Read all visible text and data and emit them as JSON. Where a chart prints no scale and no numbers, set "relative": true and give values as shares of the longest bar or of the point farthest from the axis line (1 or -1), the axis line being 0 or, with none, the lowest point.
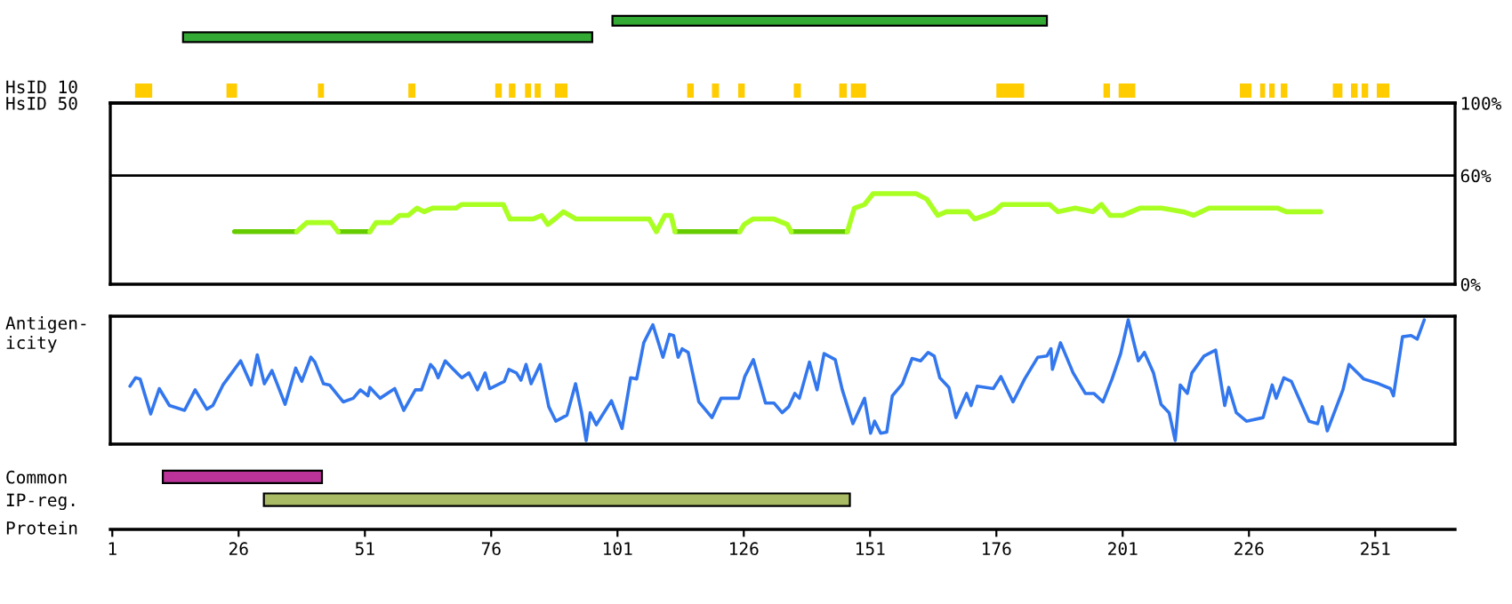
{
  "chart_data": [
    {
      "type": "bar",
      "orientation": "horizontal",
      "categories": [
        null,
        null,
        null,
        null,
        "HsID 10",
        "HsID 50"
      ],
      "values": [
        86,
        81,
        null,
        null,
        null,
        null
      ],
      "base": [
        100,
        15,
        null,
        null,
        null,
        null
      ],
      "colors": [
        "#33aa33",
        "#33aa33",
        null,
        null,
        null,
        null
      ],
      "xlim": [
        0.6,
        266.8
      ],
      "tick_labels": "y",
      "bands": [
        {
          "axis": "x",
          "from": 5.5,
          "to": 8.9,
          "color": "#ffcc00"
        },
        {
          "axis": "x",
          "from": 23.6,
          "to": 25.7,
          "color": "#ffcc00"
        },
        {
          "axis": "x",
          "from": 41.7,
          "to": 42.9,
          "color": "#ffcc00"
        },
        {
          "axis": "x",
          "from": 59.6,
          "to": 61.0,
          "color": "#ffcc00"
        },
        {
          "axis": "x",
          "from": 76.8,
          "to": 78.1,
          "color": "#ffcc00"
        },
        {
          "axis": "x",
          "from": 79.5,
          "to": 80.8,
          "color": "#ffcc00"
        },
        {
          "axis": "x",
          "from": 82.7,
          "to": 83.9,
          "color": "#ffcc00"
        },
        {
          "axis": "x",
          "from": 84.6,
          "to": 85.8,
          "color": "#ffcc00"
        },
        {
          "axis": "x",
          "from": 88.6,
          "to": 91.1,
          "color": "#ffcc00"
        },
        {
          "axis": "x",
          "from": 114.8,
          "to": 116.1,
          "color": "#ffcc00"
        },
        {
          "axis": "x",
          "from": 119.7,
          "to": 121.1,
          "color": "#ffcc00"
        },
        {
          "axis": "x",
          "from": 124.9,
          "to": 126.2,
          "color": "#ffcc00"
        },
        {
          "axis": "x",
          "from": 135.9,
          "to": 137.3,
          "color": "#ffcc00"
        },
        {
          "axis": "x",
          "from": 144.9,
          "to": 146.4,
          "color": "#ffcc00"
        },
        {
          "axis": "x",
          "from": 147.2,
          "to": 150.2,
          "color": "#ffcc00"
        },
        {
          "axis": "x",
          "from": 176.0,
          "to": 181.5,
          "color": "#ffcc00"
        },
        {
          "axis": "x",
          "from": 197.2,
          "to": 198.5,
          "color": "#ffcc00"
        },
        {
          "axis": "x",
          "from": 200.2,
          "to": 203.5,
          "color": "#ffcc00"
        },
        {
          "axis": "x",
          "from": 224.2,
          "to": 226.5,
          "color": "#ffcc00"
        },
        {
          "axis": "x",
          "from": 228.2,
          "to": 229.2,
          "color": "#ffcc00"
        },
        {
          "axis": "x",
          "from": 230.0,
          "to": 231.1,
          "color": "#ffcc00"
        },
        {
          "axis": "x",
          "from": 232.3,
          "to": 233.6,
          "color": "#ffcc00"
        },
        {
          "axis": "x",
          "from": 242.6,
          "to": 244.5,
          "color": "#ffcc00"
        },
        {
          "axis": "x",
          "from": 246.2,
          "to": 247.5,
          "color": "#ffcc00"
        },
        {
          "axis": "x",
          "from": 248.3,
          "to": 249.6,
          "color": "#ffcc00"
        },
        {
          "axis": "x",
          "from": 251.3,
          "to": 253.8,
          "color": "#ffcc00"
        }
      ]
    },
    {
      "type": "line",
      "xlim": [
        0.6,
        266.8
      ],
      "ylim": [
        0,
        100
      ],
      "yticks": [
        {
          "value": 0,
          "label": "0%"
        },
        {
          "value": 60,
          "label": "60%"
        },
        {
          "value": 100,
          "label": "100%"
        }
      ],
      "tick_labels": "y",
      "ref_lines": [
        {
          "axis": "y",
          "value": 60,
          "color": "#000000"
        }
      ],
      "series": [
        {
          "color": "#66cc00",
          "x": [
            25.2,
            37.5,
            41,
            45.7,
            52,
            80,
            112.4,
            125.2,
            130,
            135.4,
            146.5
          ],
          "values": [
            29,
            29,
            null,
            29,
            29,
            null,
            29,
            29,
            null,
            29,
            29
          ]
        },
        {
          "color": "#aaff22",
          "x": [
            37.5,
            39.5,
            44.3,
            45.7,
            49,
            52,
            53.2,
            56.2,
            57.9,
            59.6,
            61.3,
            62.7,
            64.4,
            69,
            70.2,
            78.4,
            79.7,
            84.3,
            86,
            87.2,
            88.6,
            90.3,
            92.8,
            107.3,
            108.7,
            110.4,
            111.6,
            112.4,
            118,
            125.2,
            126.1,
            127.8,
            132,
            134.6,
            135.4,
            140,
            146.5,
            147.9,
            149.9,
            151.6,
            160.1,
            162.2,
            164.4,
            166.1,
            170.4,
            171.7,
            173.8,
            175.5,
            177.2,
            186.5,
            188.2,
            191.6,
            195.1,
            196.8,
            198.5,
            201,
            202.7,
            204.4,
            208.7,
            213,
            215,
            218.1,
            231.7,
            233.4,
            240.2
          ],
          "values": [
            29,
            34,
            34,
            29,
            null,
            29,
            34,
            34,
            38,
            38,
            42,
            40,
            42,
            42,
            44,
            44,
            36,
            36,
            38,
            33,
            36,
            40,
            36,
            36,
            29,
            38,
            38,
            29,
            null,
            29,
            33,
            36,
            36,
            33,
            29,
            null,
            29,
            42,
            44,
            50,
            50,
            47,
            38,
            40,
            40,
            36,
            38,
            40,
            44,
            44,
            40,
            42,
            40,
            44,
            38,
            38,
            40,
            42,
            42,
            40,
            38,
            42,
            42,
            40,
            40
          ]
        }
      ]
    },
    {
      "type": "line",
      "relative": true,
      "ylabel": "Antigen-\nicity",
      "xlim": [
        0.6,
        266.8
      ],
      "tick_labels": false,
      "series": [
        {
          "color": "#3377ee",
          "x": [
            4.5,
            5.6,
            6.5,
            8.6,
            10.3,
            12.3,
            15.3,
            17.4,
            19.7,
            20.9,
            22.9,
            26.4,
            28.5,
            29.7,
            31.1,
            32.6,
            35.2,
            37.3,
            38.5,
            40.3,
            41.1,
            42.8,
            44.0,
            46.7,
            48.7,
            50.1,
            51.6,
            52.0,
            54.0,
            56.9,
            58.7,
            61.0,
            62.2,
            64.0,
            64.8,
            65.5,
            66.9,
            69.2,
            70.2,
            71.6,
            73.3,
            74.8,
            75.7,
            78.6,
            79.5,
            81.0,
            81.9,
            82.9,
            83.9,
            85.7,
            87.4,
            88.8,
            91.0,
            92.7,
            93.9,
            94.8,
            95.6,
            96.8,
            99.8,
            101.9,
            103.6,
            104.8,
            106.2,
            108.0,
            110.0,
            111.3,
            112.1,
            113.0,
            113.8,
            115.0,
            117.1,
            119.7,
            121.5,
            125.0,
            126.2,
            127.9,
            130.3,
            132.0,
            133.6,
            134.9,
            136.1,
            137.0,
            139.0,
            140.5,
            141.9,
            144.1,
            145.5,
            147.6,
            149.9,
            151.1,
            151.9,
            153.1,
            154.3,
            155.4,
            157.4,
            159.3,
            161.0,
            162.5,
            163.7,
            164.8,
            166.6,
            168.0,
            170.1,
            171.0,
            172.2,
            175.4,
            176.9,
            179.3,
            181.6,
            184.2,
            186.0,
            186.8,
            187.1,
            188.7,
            191.2,
            193.6,
            195.3,
            197.1,
            198.9,
            200.6,
            202.1,
            204.1,
            205.3,
            207.1,
            208.6,
            210.2,
            211.4,
            212.4,
            213.8,
            214.7,
            217.1,
            219.4,
            221.2,
            222.0,
            223.5,
            225.5,
            228.8,
            230.6,
            231.4,
            232.9,
            234.4,
            237.9,
            239.6,
            240.5,
            241.5,
            244.6,
            245.8,
            248.7,
            251.7,
            254.0,
            254.6,
            256.4,
            258.1,
            259.3,
            260.7
          ],
          "values": [
            0.45,
            0.52,
            0.51,
            0.22,
            0.43,
            0.29,
            0.25,
            0.42,
            0.26,
            0.29,
            0.46,
            0.66,
            0.46,
            0.71,
            0.47,
            0.58,
            0.3,
            0.6,
            0.49,
            0.69,
            0.65,
            0.47,
            0.46,
            0.32,
            0.35,
            0.42,
            0.37,
            0.44,
            0.35,
            0.43,
            0.25,
            0.42,
            0.42,
            0.63,
            0.59,
            0.52,
            0.66,
            0.56,
            0.52,
            0.56,
            0.42,
            0.56,
            0.43,
            0.49,
            0.59,
            0.56,
            0.5,
            0.63,
            0.47,
            0.63,
            0.28,
            0.16,
            0.21,
            0.47,
            0.23,
            0,
            0.23,
            0.13,
            0.33,
            0.1,
            0.52,
            0.51,
            0.81,
            0.96,
            0.69,
            0.88,
            0.87,
            0.69,
            0.76,
            0.73,
            0.32,
            0.19,
            0.35,
            0.35,
            0.53,
            0.67,
            0.31,
            0.31,
            0.23,
            0.28,
            0.39,
            0.35,
            0.65,
            0.42,
            0.72,
            0.67,
            0.42,
            0.14,
            0.35,
            0.06,
            0.16,
            0.06,
            0.07,
            0.37,
            0.47,
            0.68,
            0.66,
            0.73,
            0.7,
            0.52,
            0.44,
            0.19,
            0.39,
            0.29,
            0.45,
            0.43,
            0.53,
            0.32,
            0.51,
            0.69,
            0.7,
            0.76,
            0.59,
            0.81,
            0.56,
            0.39,
            0.39,
            0.32,
            0.51,
            0.72,
            1,
            0.66,
            0.73,
            0.56,
            0.3,
            0.23,
            0,
            0.46,
            0.39,
            0.56,
            0.7,
            0.75,
            0.29,
            0.44,
            0.23,
            0.16,
            0.19,
            0.46,
            0.35,
            0.52,
            0.49,
            0.16,
            0.14,
            0.28,
            0.08,
            0.42,
            0.63,
            0.51,
            0.47,
            0.43,
            0.37,
            0.86,
            0.87,
            0.84,
            1
          ]
        }
      ]
    },
    {
      "type": "bar",
      "orientation": "horizontal",
      "categories": [
        "Common",
        "IP-reg."
      ],
      "values": [
        31.5,
        116
      ],
      "base": [
        11,
        31
      ],
      "colors": [
        "#bb3399",
        "#aabb66"
      ],
      "xlabel": "Protein",
      "xlim": [
        0.6,
        266.8
      ],
      "xticks": [
        1,
        26,
        51,
        76,
        101,
        126,
        151,
        176,
        201,
        226,
        251
      ]
    }
  ]
}
